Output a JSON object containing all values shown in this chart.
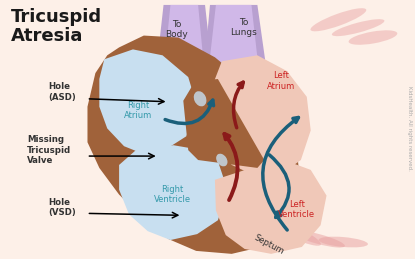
{
  "bg_color": "#fdf0e8",
  "title": "Tricuspid\nAtresia",
  "title_color": "#1a1a1a",
  "title_fontsize": 13,
  "labels": {
    "to_body": "To\nBody",
    "to_lungs": "To\nLungs",
    "left_atrium": "Left\nAtrium",
    "right_atrium": "Right\nAtrium",
    "right_ventricle": "Right\nVentricle",
    "left_ventricle": "Left\nVentricle",
    "septum": "Septum",
    "hole_asd": "Hole\n(ASD)",
    "missing_valve": "Missing\nTricuspid\nValve",
    "hole_vsd": "Hole\n(VSD)"
  },
  "label_color_cyan": "#3399aa",
  "label_color_dark": "#333333",
  "label_color_red": "#cc2222",
  "heart_outer_color": "#a0623a",
  "heart_inner_right_color": "#c8dff0",
  "heart_inner_left_color": "#f0c8b8",
  "aorta_color": "#b8a0d0",
  "aorta_light_color": "#d0b8e8",
  "arrow_blue": "#1a5f7a",
  "arrow_red": "#8b1a1a",
  "copyright_text": "KidsHealth. All rights reserved.",
  "copyright_color": "#aaaaaa",
  "copyright_fontsize": 4.0
}
